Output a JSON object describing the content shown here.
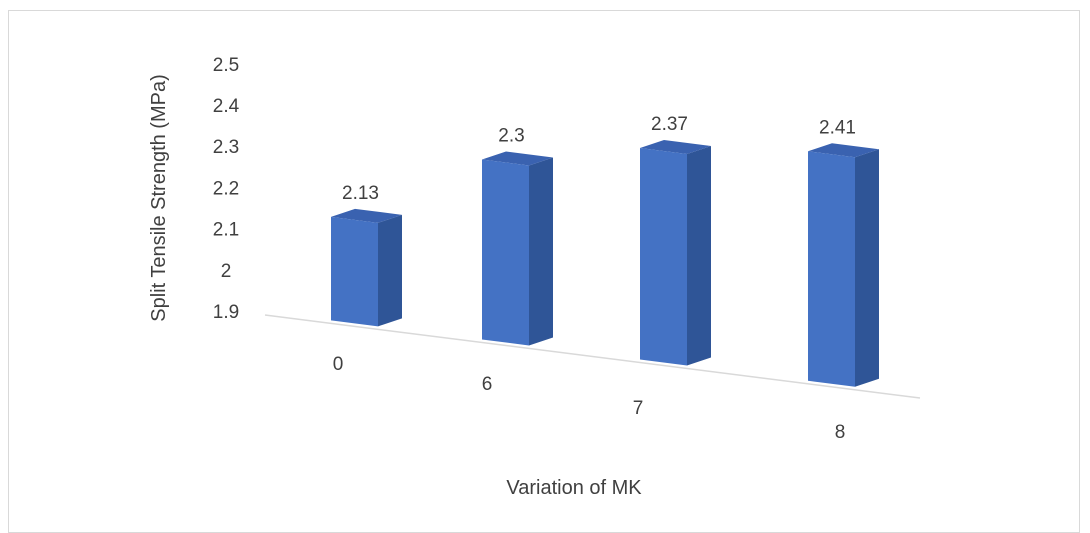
{
  "chart_data": {
    "type": "bar",
    "title": "",
    "xlabel": "Variation of MK",
    "ylabel": "Split Tensile Strength (MPa)",
    "categories": [
      "0",
      "6",
      "7",
      "8"
    ],
    "values": [
      2.13,
      2.3,
      2.37,
      2.41
    ],
    "data_labels": [
      "2.13",
      "2.3",
      "2.37",
      "2.41"
    ],
    "y_ticks": [
      "1.9",
      "2",
      "2.1",
      "2.2",
      "2.3",
      "2.4",
      "2.5"
    ],
    "ylim": [
      1.9,
      2.5
    ],
    "grid": false,
    "legend": "none",
    "style": "3d-column",
    "colors": {
      "front": "#4472c4",
      "side": "#2f5597",
      "top": "#3a62b0",
      "axis": "#d9d9d9",
      "text": "#404040"
    }
  }
}
